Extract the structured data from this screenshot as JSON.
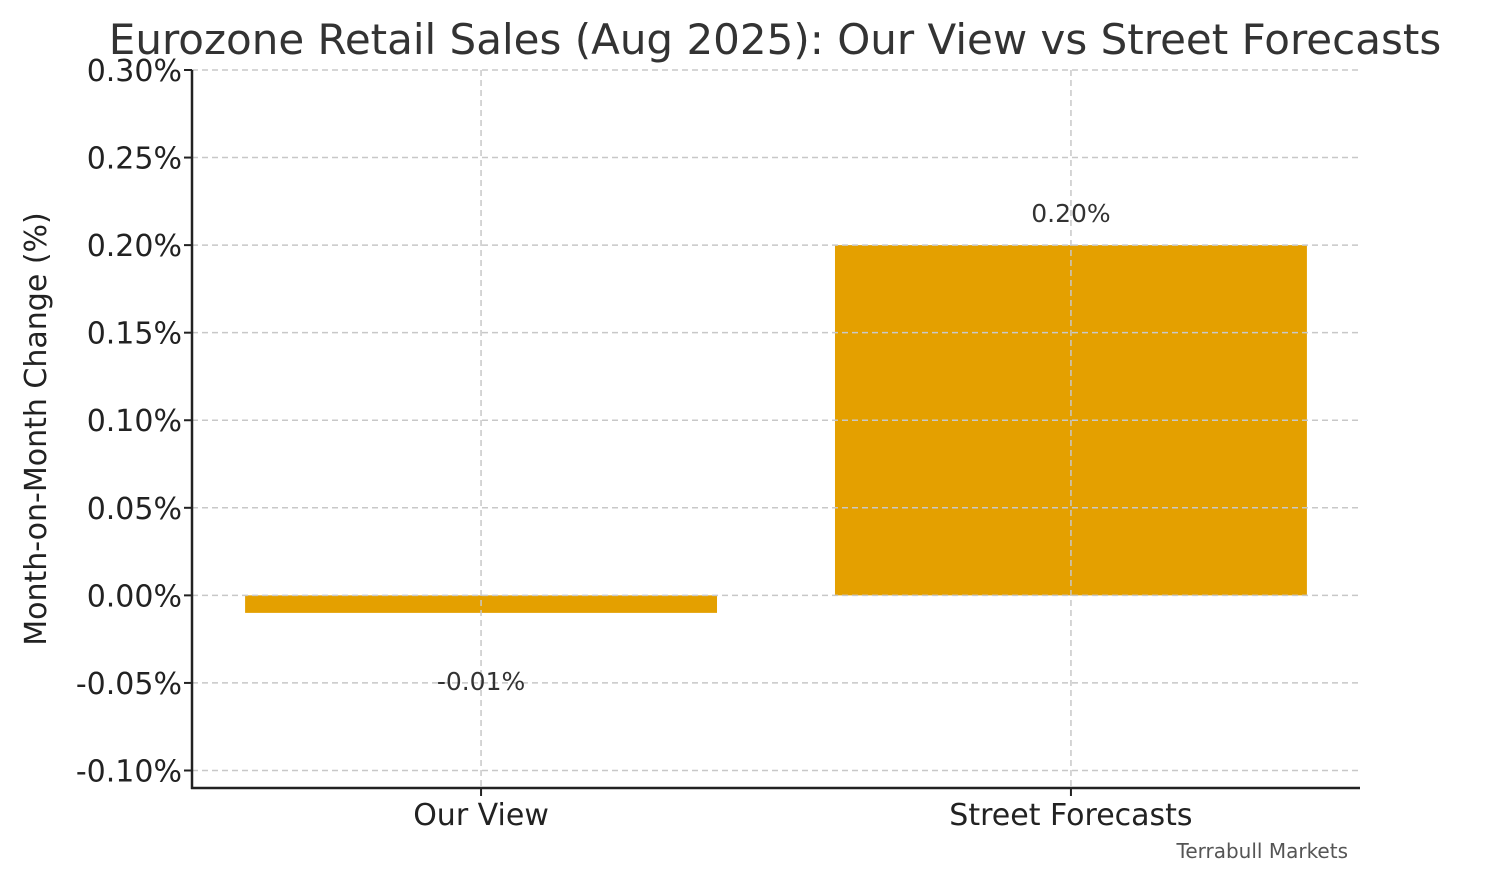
{
  "chart_data": {
    "type": "bar",
    "title": "Eurozone Retail Sales (Aug 2025): Our View vs Street Forecasts",
    "xlabel": "",
    "ylabel": "Month-on-Month Change (%)",
    "categories": [
      "Our View",
      "Street Forecasts"
    ],
    "values": [
      -0.01,
      0.2
    ],
    "data_labels": [
      "-0.01%",
      "0.20%"
    ],
    "ylim": [
      -0.11,
      0.3
    ],
    "yticks": [
      -0.1,
      -0.05,
      0.0,
      0.05,
      0.1,
      0.15,
      0.2,
      0.25,
      0.3
    ],
    "ytick_labels": [
      "-0.10%",
      "-0.05%",
      "0.00%",
      "0.05%",
      "0.10%",
      "0.15%",
      "0.20%",
      "0.25%",
      "0.30%"
    ],
    "grid": true,
    "bar_color": "#E4A000"
  },
  "footer": {
    "source": "Terrabull Markets"
  }
}
